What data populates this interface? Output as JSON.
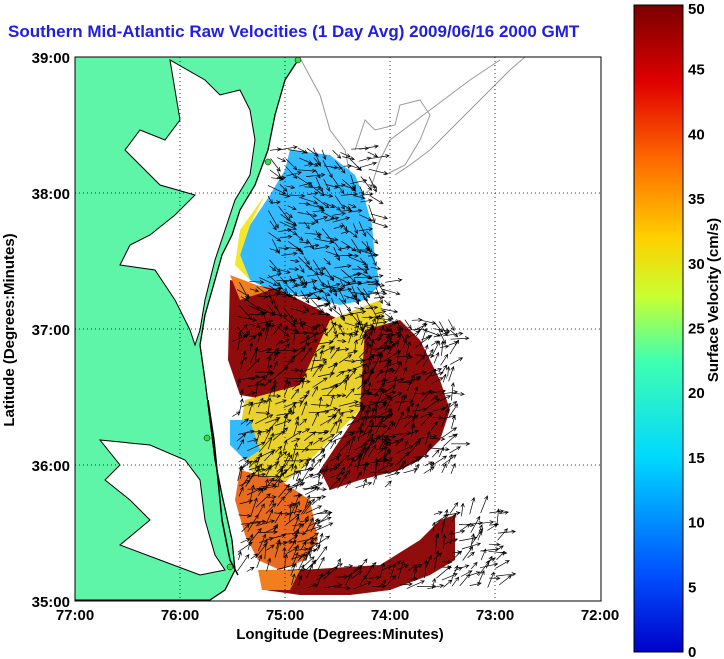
{
  "title": "Southern Mid-Atlantic Raw Velocities (1 Day Avg) 2009/06/16 2000 GMT",
  "xlabel": "Longitude (Degrees:Minutes)",
  "ylabel": "Latitude (Degrees:Minutes)",
  "x_ticks": [
    "77:00",
    "76:00",
    "75:00",
    "74:00",
    "73:00",
    "72:00"
  ],
  "y_ticks": [
    "39:00",
    "38:00",
    "37:00",
    "36:00",
    "35:00"
  ],
  "colorbar": {
    "label": "Surface Velocity (cm/s)",
    "ticks": [
      "0",
      "5",
      "10",
      "15",
      "20",
      "25",
      "30",
      "35",
      "40",
      "45",
      "50"
    ],
    "range": [
      0,
      50
    ],
    "colormap": "jet"
  },
  "colors": {
    "land": "#5ef5a8",
    "coast_line": "#000000",
    "bathymetry": "#9a9a9a",
    "title_color": "#1e1ee6"
  },
  "map_extent": {
    "lon": [
      -77,
      -72
    ],
    "lat": [
      35,
      39
    ]
  }
}
